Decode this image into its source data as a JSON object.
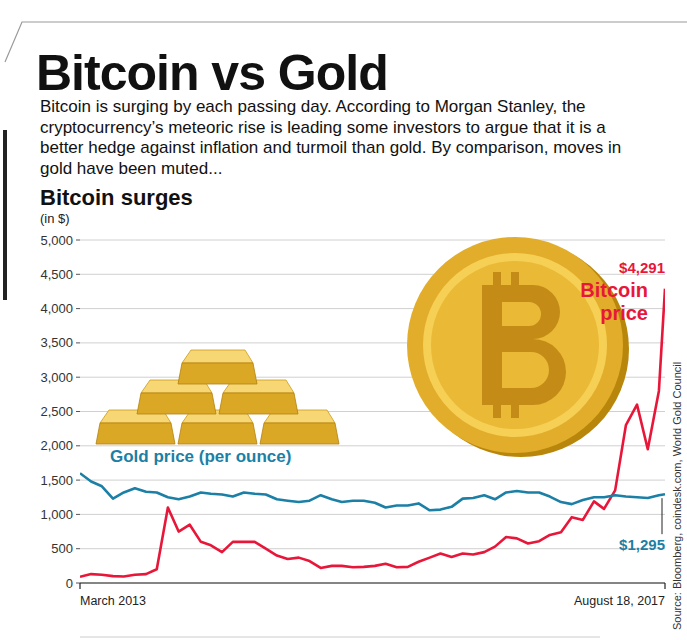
{
  "chart_data": {
    "type": "line",
    "title": "Bitcoin vs Gold",
    "subtitle": "Bitcoin is surging by each passing day. According to Morgan Stanley, the cryptocurrency’s meteoric rise is leading some investors to argue that it is a better hedge against inflation and turmoil than gold. By comparison, moves in gold have been muted...",
    "chart_title": "Bitcoin surges",
    "y_label": "(in $)",
    "source": "Source: Bloomberg, coindesk.com, World Gold Council",
    "x": [
      "2013-03",
      "2013-04",
      "2013-05",
      "2013-06",
      "2013-07",
      "2013-08",
      "2013-09",
      "2013-10",
      "2013-11",
      "2013-12",
      "2014-01",
      "2014-02",
      "2014-03",
      "2014-04",
      "2014-05",
      "2014-06",
      "2014-07",
      "2014-08",
      "2014-09",
      "2014-10",
      "2014-11",
      "2014-12",
      "2015-01",
      "2015-02",
      "2015-03",
      "2015-04",
      "2015-05",
      "2015-06",
      "2015-07",
      "2015-08",
      "2015-09",
      "2015-10",
      "2015-11",
      "2015-12",
      "2016-01",
      "2016-02",
      "2016-03",
      "2016-04",
      "2016-05",
      "2016-06",
      "2016-07",
      "2016-08",
      "2016-09",
      "2016-10",
      "2016-11",
      "2016-12",
      "2017-01",
      "2017-02",
      "2017-03",
      "2017-04",
      "2017-05",
      "2017-06",
      "2017-07",
      "2017-08",
      "2017-08-18"
    ],
    "series": [
      {
        "name": "Bitcoin price",
        "color": "#e8173a",
        "values": [
          90,
          130,
          120,
          100,
          95,
          120,
          130,
          200,
          1100,
          750,
          850,
          600,
          550,
          450,
          600,
          600,
          600,
          500,
          400,
          350,
          370,
          320,
          220,
          250,
          250,
          230,
          235,
          250,
          280,
          230,
          235,
          310,
          370,
          430,
          380,
          430,
          415,
          450,
          530,
          670,
          650,
          575,
          610,
          700,
          740,
          960,
          920,
          1190,
          1080,
          1350,
          2300,
          2600,
          1950,
          2800,
          4291
        ]
      },
      {
        "name": "Gold price (per ounce)",
        "color": "#1b7fa6",
        "values": [
          1600,
          1480,
          1410,
          1230,
          1320,
          1380,
          1330,
          1320,
          1250,
          1220,
          1260,
          1320,
          1300,
          1290,
          1260,
          1320,
          1300,
          1290,
          1220,
          1200,
          1180,
          1200,
          1280,
          1220,
          1180,
          1200,
          1200,
          1170,
          1100,
          1130,
          1130,
          1160,
          1060,
          1070,
          1110,
          1230,
          1240,
          1280,
          1220,
          1320,
          1340,
          1320,
          1320,
          1260,
          1180,
          1150,
          1210,
          1250,
          1250,
          1280,
          1260,
          1250,
          1240,
          1280,
          1295
        ]
      }
    ],
    "annotations": [
      "$4,291",
      "$1,295"
    ],
    "xlim": [
      "2013-03",
      "2017-08-18"
    ],
    "xticks": [
      {
        "value": "2013-03",
        "label": "March 2013"
      },
      {
        "value": "2017-08-18",
        "label": "August 18, 2017"
      }
    ],
    "ylim": [
      0,
      5000
    ],
    "yticks": [
      0,
      500,
      {
        "value": 1000,
        "label": "1,000"
      },
      {
        "value": 1500,
        "label": "1,500"
      },
      {
        "value": 2000,
        "label": "2,000"
      },
      {
        "value": 2500,
        "label": "2,500"
      },
      {
        "value": 3000,
        "label": "3,000"
      },
      {
        "value": 3500,
        "label": "3,500"
      },
      {
        "value": 4000,
        "label": "4,000"
      },
      {
        "value": 4500,
        "label": "4,500"
      },
      {
        "value": 5000,
        "label": "5,000"
      }
    ],
    "grid": true
  }
}
